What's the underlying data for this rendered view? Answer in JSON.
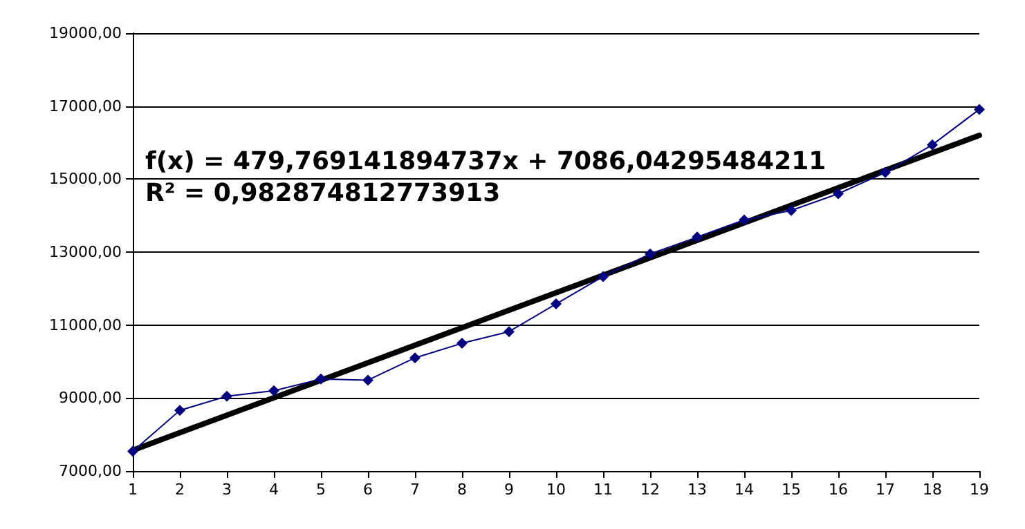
{
  "chart_data": {
    "type": "line",
    "x": [
      1,
      2,
      3,
      4,
      5,
      6,
      7,
      8,
      9,
      10,
      11,
      12,
      13,
      14,
      15,
      16,
      17,
      18,
      19
    ],
    "series": [
      {
        "color": "#000080",
        "values": [
          7540,
          8660,
          9050,
          9200,
          9520,
          9490,
          10100,
          10500,
          10820,
          11580,
          12330,
          12950,
          13410,
          13880,
          14140,
          14600,
          15180,
          15940,
          16910
        ]
      },
      {
        "type": "line",
        "color": "#000000",
        "x": [
          1,
          19
        ],
        "values": [
          7570,
          16200
        ],
        "marker": "none"
      }
    ],
    "xlim": [
      1,
      19
    ],
    "xticks": [
      1,
      2,
      3,
      4,
      5,
      6,
      7,
      8,
      9,
      10,
      11,
      12,
      13,
      14,
      15,
      16,
      17,
      18,
      19
    ],
    "ylim": [
      7000,
      19000
    ],
    "yticks": [
      {
        "value": 7000,
        "label": "7000,00"
      },
      {
        "value": 9000,
        "label": "9000,00"
      },
      {
        "value": 11000,
        "label": "11000,00"
      },
      {
        "value": 13000,
        "label": "13000,00"
      },
      {
        "value": 15000,
        "label": "15000,00"
      },
      {
        "value": 17000,
        "label": "17000,00"
      },
      {
        "value": 19000,
        "label": "19000,00"
      }
    ],
    "grid": "y",
    "marker": "diamond",
    "annotations": [
      "f(x) = 479,769141894737x + 7086,04295484211",
      "R² = 0,982874812773913"
    ]
  }
}
